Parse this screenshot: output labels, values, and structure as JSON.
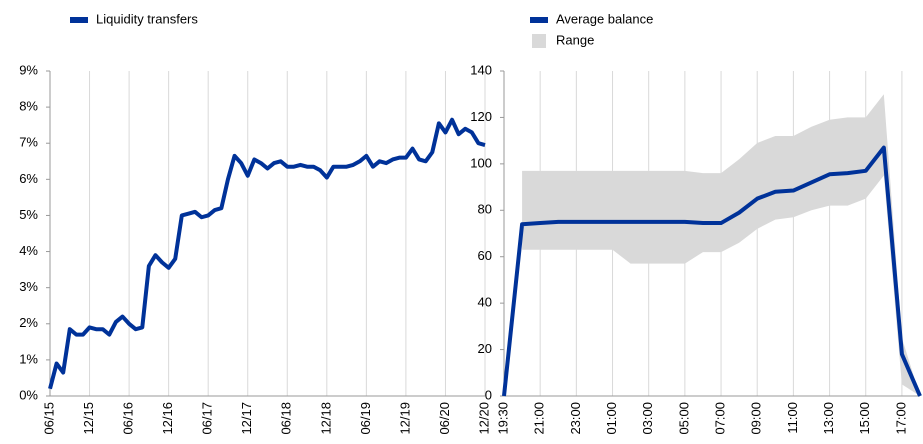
{
  "chart_data": [
    {
      "type": "line",
      "categories": [
        "06/15",
        null,
        null,
        null,
        null,
        null,
        "12/15",
        null,
        null,
        null,
        null,
        null,
        "06/16",
        null,
        null,
        null,
        null,
        null,
        "12/16",
        null,
        null,
        null,
        null,
        null,
        "06/17",
        null,
        null,
        null,
        null,
        null,
        "12/17",
        null,
        null,
        null,
        null,
        null,
        "06/18",
        null,
        null,
        null,
        null,
        null,
        "12/18",
        null,
        null,
        null,
        null,
        null,
        "06/19",
        null,
        null,
        null,
        null,
        null,
        "12/19",
        null,
        null,
        null,
        null,
        null,
        "06/20",
        null,
        null,
        null,
        null,
        null,
        "12/20"
      ],
      "series": [
        {
          "name": "Liquidity transfers",
          "color": "#003299",
          "values": [
            0.2,
            0.9,
            0.65,
            1.85,
            1.7,
            1.7,
            1.9,
            1.85,
            1.85,
            1.7,
            2.05,
            2.2,
            2.0,
            1.85,
            1.9,
            3.6,
            3.9,
            3.7,
            3.55,
            3.8,
            5.0,
            5.05,
            5.1,
            4.95,
            5.0,
            5.15,
            5.2,
            6.0,
            6.65,
            6.45,
            6.1,
            6.55,
            6.45,
            6.3,
            6.45,
            6.5,
            6.35,
            6.35,
            6.4,
            6.35,
            6.35,
            6.25,
            6.05,
            6.35,
            6.35,
            6.35,
            6.4,
            6.5,
            6.65,
            6.35,
            6.5,
            6.45,
            6.55,
            6.6,
            6.6,
            6.85,
            6.55,
            6.5,
            6.75,
            7.55,
            7.3,
            7.65,
            7.25,
            7.4,
            7.3,
            7.0,
            6.95
          ]
        }
      ],
      "ylim": [
        0,
        9
      ],
      "yticks": [
        {
          "value": 0,
          "label": "0%"
        },
        {
          "value": 1,
          "label": "1%"
        },
        {
          "value": 2,
          "label": "2%"
        },
        {
          "value": 3,
          "label": "3%"
        },
        {
          "value": 4,
          "label": "4%"
        },
        {
          "value": 5,
          "label": "5%"
        },
        {
          "value": 6,
          "label": "6%"
        },
        {
          "value": 7,
          "label": "7%"
        },
        {
          "value": 8,
          "label": "8%"
        },
        {
          "value": 9,
          "label": "9%"
        }
      ],
      "grid": "x"
    },
    {
      "type": "line",
      "categories": [
        "19:30",
        null,
        "21:00",
        null,
        "23:00",
        null,
        "01:00",
        null,
        "03:00",
        null,
        "05:00",
        null,
        "07:00",
        null,
        "09:00",
        null,
        "11:00",
        null,
        "13:00",
        null,
        "15:00",
        null,
        "17:00",
        null
      ],
      "series": [
        {
          "name": "Average balance",
          "color": "#003299",
          "values": [
            0,
            74,
            74.5,
            75,
            75,
            75,
            75,
            75,
            75,
            75,
            75,
            74.5,
            74.5,
            79,
            85,
            88,
            88.5,
            92,
            95.5,
            96,
            97,
            107,
            18,
            0
          ]
        }
      ],
      "range": {
        "name": "Range",
        "color": "#d9d9d9",
        "low": [
          null,
          63,
          63,
          63,
          63,
          63,
          63,
          57,
          57,
          57,
          57,
          62,
          62,
          66,
          72,
          76,
          77,
          80,
          82,
          82,
          85,
          95,
          5,
          0
        ],
        "high": [
          null,
          97,
          97,
          97,
          97,
          97,
          97,
          97,
          97,
          97,
          97,
          96,
          96,
          102,
          109,
          112,
          112,
          116,
          119,
          120,
          120,
          130,
          25,
          0
        ]
      },
      "ylim": [
        0,
        140
      ],
      "yticks": [
        0,
        20,
        40,
        60,
        80,
        100,
        120,
        140
      ],
      "grid": "x"
    }
  ]
}
